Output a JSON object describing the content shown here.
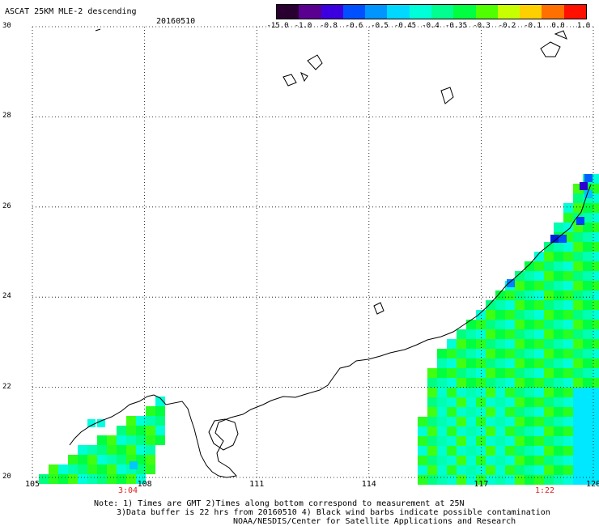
{
  "header": {
    "title": "ASCAT 25KM MLE-2 descending",
    "date": "20160510"
  },
  "colorbar": {
    "labels": [
      "-15.0",
      "-1.0",
      "-0.8",
      "-0.6",
      "-0.5",
      "-0.45",
      "-0.4",
      "-0.35",
      "-0.3",
      "-0.2",
      "-0.1",
      "0.0",
      "1.0"
    ],
    "colors": [
      "#2a0030",
      "#5a0090",
      "#3c00e0",
      "#0050ff",
      "#0095ff",
      "#00d8ff",
      "#00ffd8",
      "#00ff90",
      "#00ff40",
      "#50ff00",
      "#c8ff00",
      "#ffd000",
      "#ff7000",
      "#ff1000"
    ]
  },
  "axes": {
    "lat_labels": [
      "30",
      "28",
      "26",
      "24",
      "22",
      "20"
    ],
    "lon_labels": [
      "105",
      "108",
      "111",
      "114",
      "117",
      "120"
    ]
  },
  "pass_times": [
    "3:04",
    "1:22"
  ],
  "notes": [
    "Note: 1) Times are GMT 2)Times along bottom correspond to measurement at 25N",
    "3)Data buffer is 22 hrs from 20160510 4) Black wind barbs indicate possible contamination",
    "NOAA/NESDIS/Center for Satellite Applications and Research"
  ],
  "legend_colors": {
    "land": "#ffffff",
    "coast": "#000000",
    "grid": "#000000",
    "time_text": "#dd2222"
  }
}
